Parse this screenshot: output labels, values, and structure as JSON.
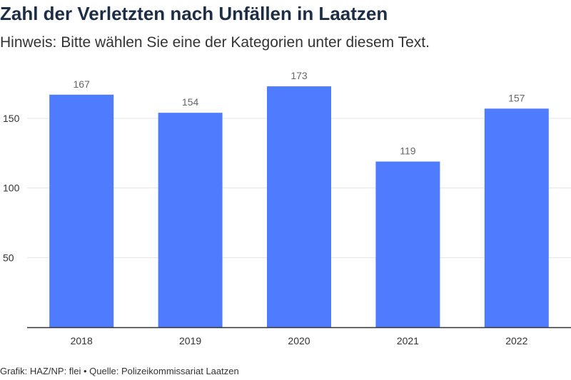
{
  "title": "Zahl der Verletzten nach Unfällen in Laatzen",
  "subtitle": "Hinweis: Bitte wählen Sie eine der Kategorien unter diesem Text.",
  "footer": "Grafik: HAZ/NP: flei • Quelle: Polizeikommissariat Laatzen",
  "colors": {
    "bar": "#4f7cfe",
    "grid": "#e5e5e5",
    "axis": "#333333",
    "title": "#1d2d44"
  },
  "chart_data": {
    "type": "bar",
    "categories": [
      "2018",
      "2019",
      "2020",
      "2021",
      "2022"
    ],
    "values": [
      167,
      154,
      173,
      119,
      157
    ],
    "yticks": [
      50,
      100,
      150
    ],
    "ylim": [
      0,
      180
    ],
    "grid": true,
    "data_labels": true
  }
}
